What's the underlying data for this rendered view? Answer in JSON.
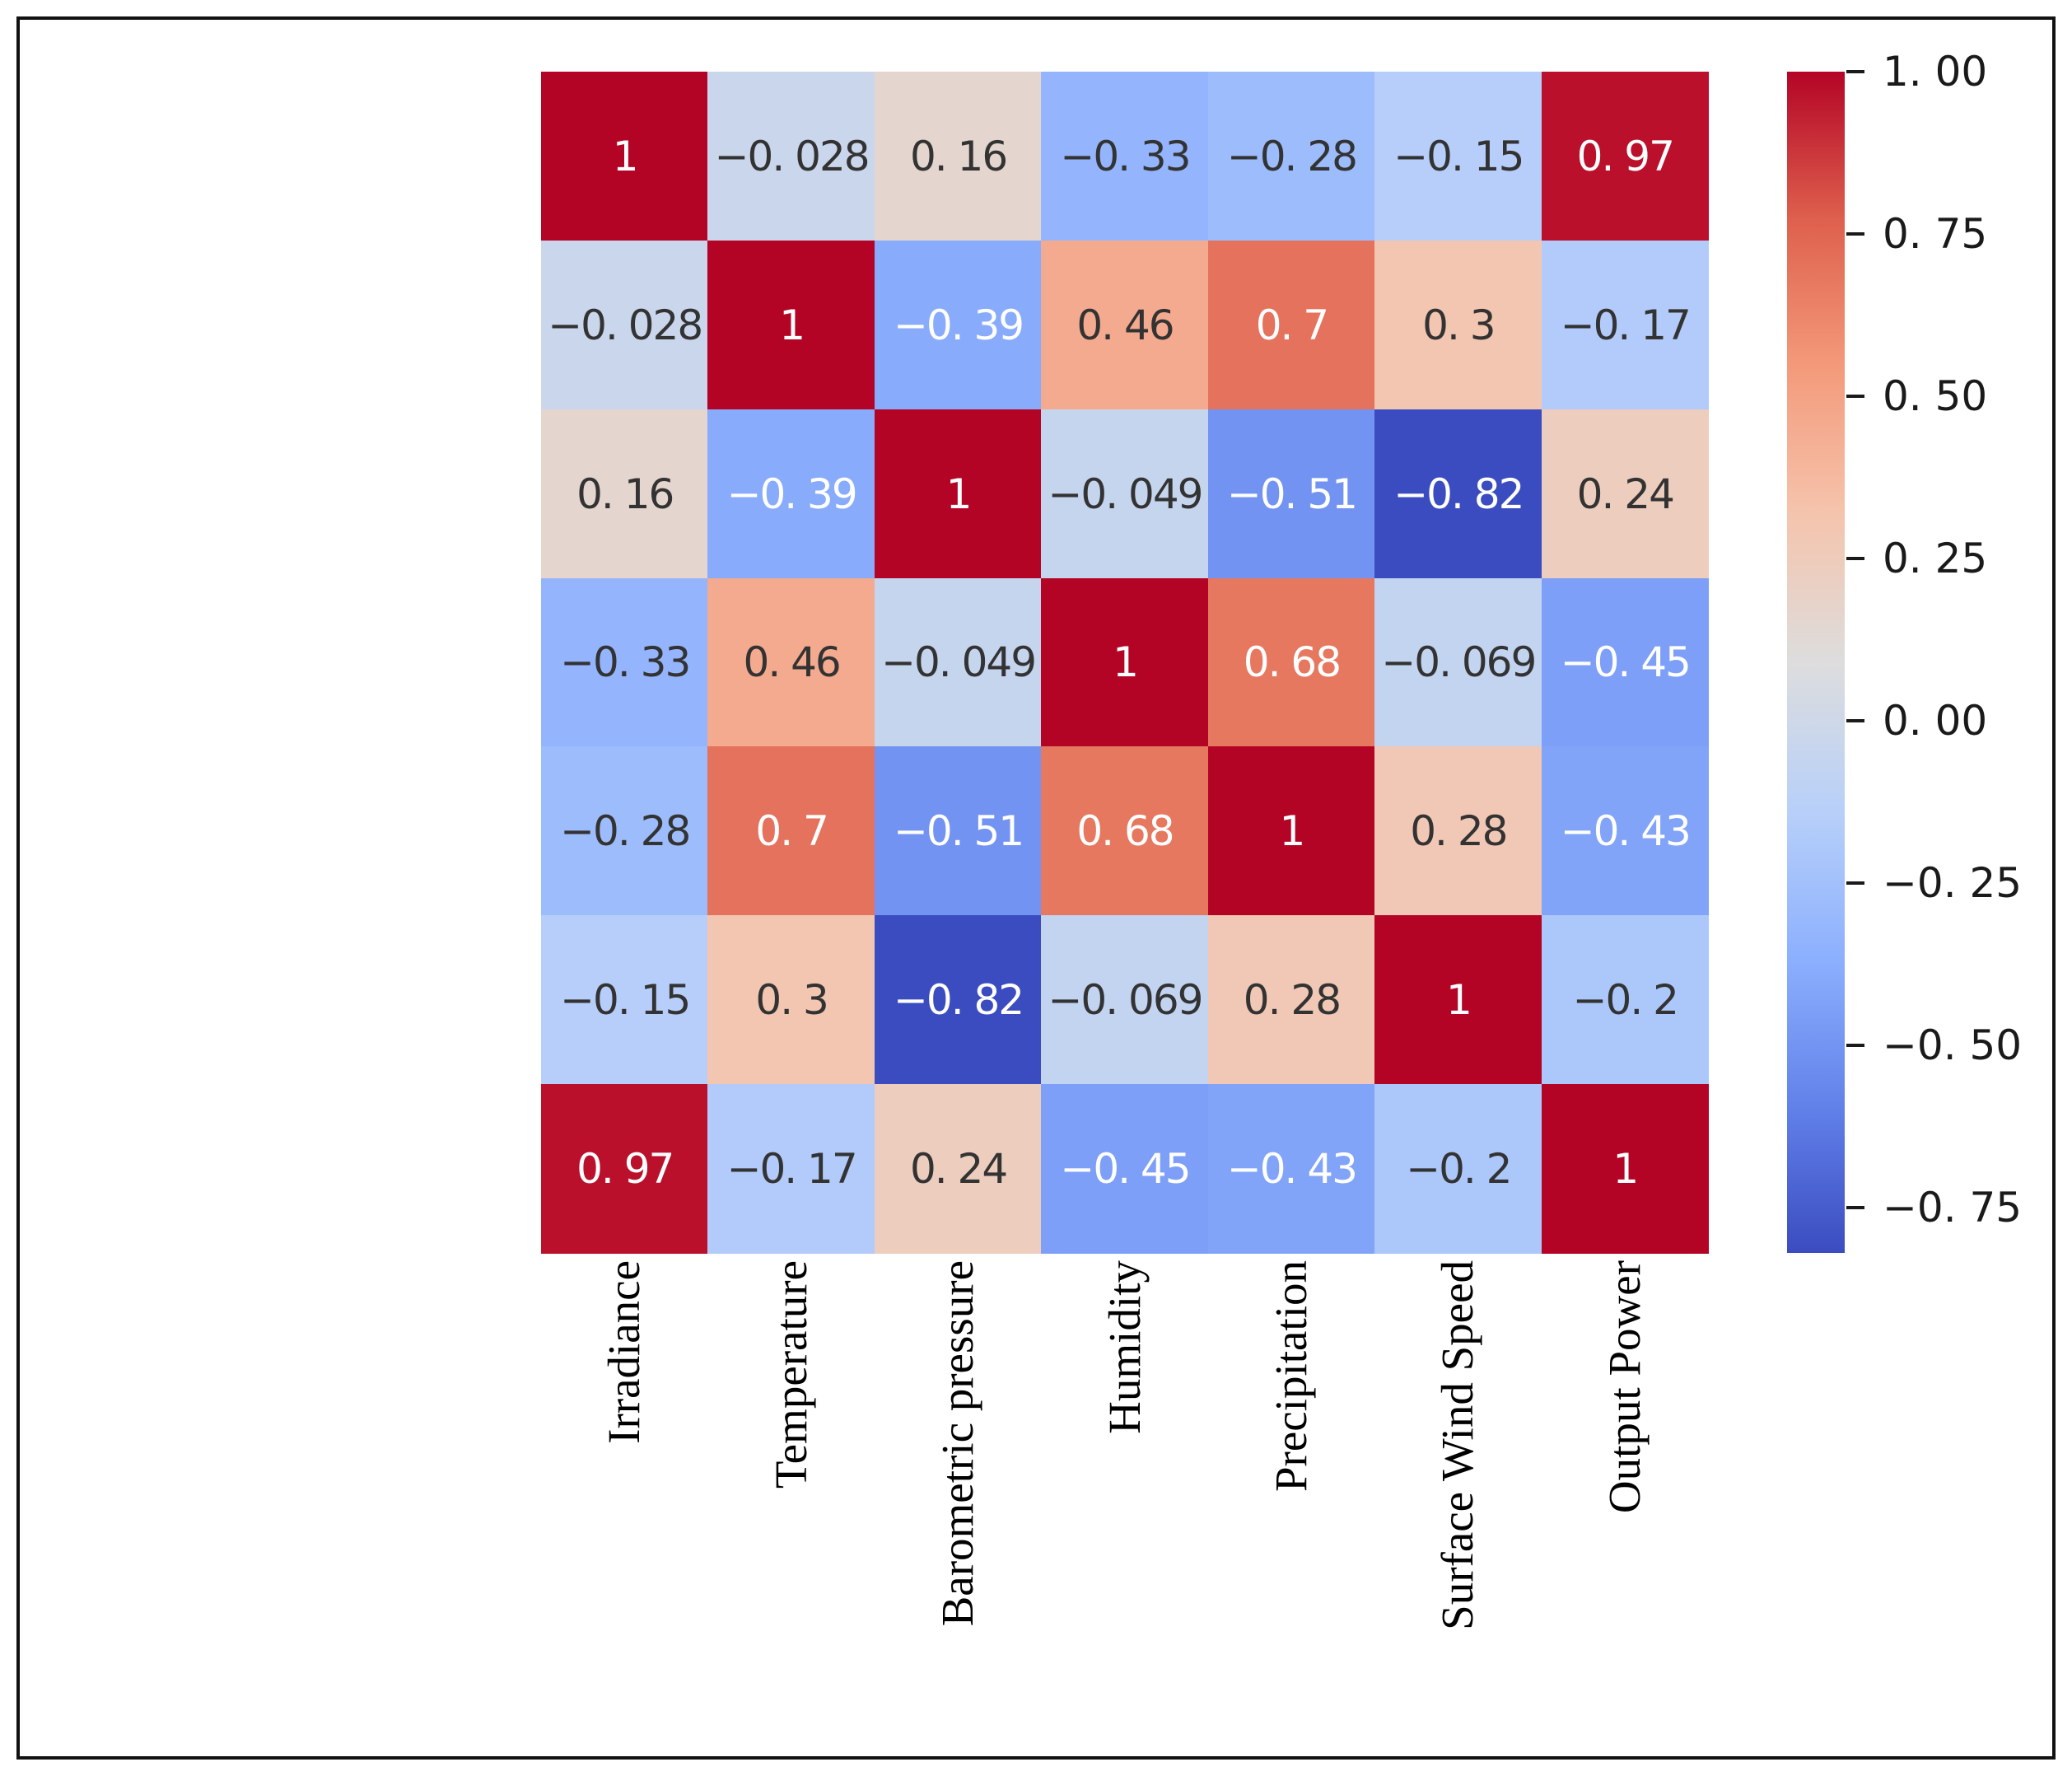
{
  "figure": {
    "background_color": "#ffffff",
    "frame_color": "#111111"
  },
  "chart_data": {
    "type": "heatmap",
    "title": "",
    "xlabel": "",
    "ylabel": "",
    "grid": "off",
    "legend_position": "colorbar-right",
    "categories": [
      "Irradiance",
      "Temperature",
      "Barometric pressure",
      "Humidity",
      "Precipitation",
      "Surface Wind Speed",
      "Output Power"
    ],
    "matrix": [
      [
        1,
        -0.028,
        0.16,
        -0.33,
        -0.28,
        -0.15,
        0.97
      ],
      [
        -0.028,
        1,
        -0.39,
        0.46,
        0.7,
        0.3,
        -0.17
      ],
      [
        0.16,
        -0.39,
        1,
        -0.049,
        -0.51,
        -0.82,
        0.24
      ],
      [
        -0.33,
        0.46,
        -0.049,
        1,
        0.68,
        -0.069,
        -0.45
      ],
      [
        -0.28,
        0.7,
        -0.51,
        0.68,
        1,
        0.28,
        -0.43
      ],
      [
        -0.15,
        0.3,
        -0.82,
        -0.069,
        0.28,
        1,
        -0.2
      ],
      [
        0.97,
        -0.17,
        0.24,
        -0.45,
        -0.43,
        -0.2,
        1
      ]
    ],
    "value_labels": [
      [
        "1",
        "−0. 028",
        "0. 16",
        "−0. 33",
        "−0. 28",
        "−0. 15",
        "0. 97"
      ],
      [
        "−0. 028",
        "1",
        "−0. 39",
        "0. 46",
        "0. 7",
        "0. 3",
        "−0. 17"
      ],
      [
        "0. 16",
        "−0. 39",
        "1",
        "−0. 049",
        "−0. 51",
        "−0. 82",
        "0. 24"
      ],
      [
        "−0. 33",
        "0. 46",
        "−0. 049",
        "1",
        "0. 68",
        "−0. 069",
        "−0. 45"
      ],
      [
        "−0. 28",
        "0. 7",
        "−0. 51",
        "0. 68",
        "1",
        "0. 28",
        "−0. 43"
      ],
      [
        "−0. 15",
        "0. 3",
        "−0. 82",
        "−0. 069",
        "0. 28",
        "1",
        "−0. 2"
      ],
      [
        "0. 97",
        "−0. 17",
        "0. 24",
        "−0. 45",
        "−0. 43",
        "−0. 2",
        "1"
      ]
    ],
    "vmin": -0.82,
    "vmax": 1.0,
    "colormap": {
      "name": "coolwarm",
      "stops": [
        [
          0.0,
          "#3b4cc0"
        ],
        [
          0.125,
          "#6282ea"
        ],
        [
          0.25,
          "#8db0fe"
        ],
        [
          0.375,
          "#b8d0f9"
        ],
        [
          0.5,
          "#dddddd"
        ],
        [
          0.625,
          "#f5c4ad"
        ],
        [
          0.75,
          "#f49a7b"
        ],
        [
          0.875,
          "#de604d"
        ],
        [
          1.0,
          "#b40426"
        ]
      ]
    },
    "annotation_colors": {
      "light": "#ffffff",
      "dark": "#333333"
    },
    "luminance_threshold": 0.425,
    "colorbar": {
      "tick_values": [
        1.0,
        0.75,
        0.5,
        0.25,
        0.0,
        -0.25,
        -0.5,
        -0.75
      ],
      "tick_labels": [
        "1. 00",
        "0. 75",
        "0. 50",
        "0. 25",
        "0. 00",
        "−0. 25",
        "−0. 50",
        "−0. 75"
      ]
    }
  }
}
